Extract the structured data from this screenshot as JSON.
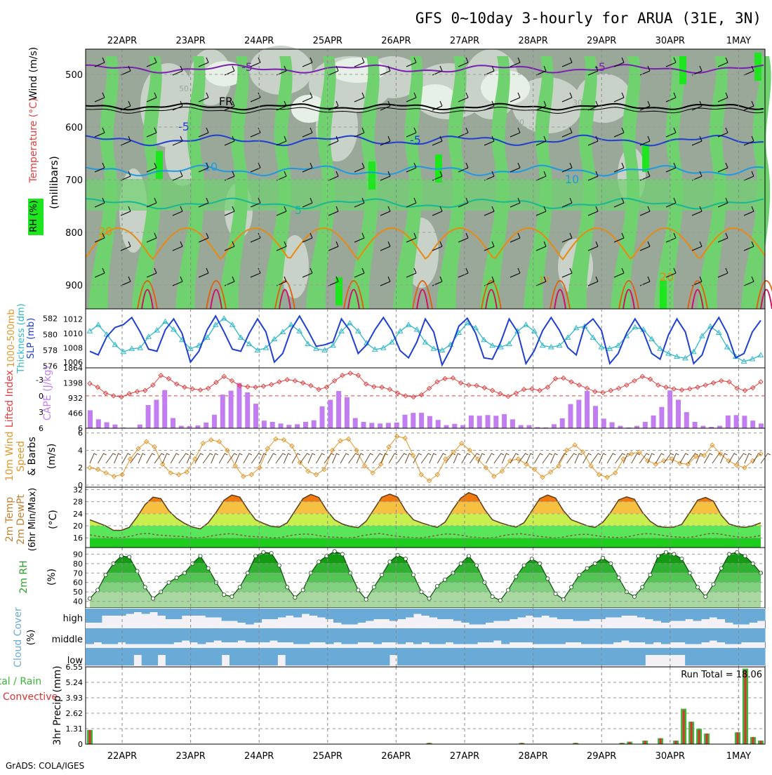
{
  "title": "GFS 0~10day 3-hourly for ARUA (31E, 3N)",
  "footer": "GrADS: COLA/IGES",
  "date_labels": [
    "22APR",
    "23APR",
    "24APR",
    "25APR",
    "26APR",
    "27APR",
    "28APR",
    "29APR",
    "30APR",
    "1MAY"
  ],
  "colors": {
    "rh_dark": "#9aa89a",
    "rh_mid": "#c8d2c8",
    "rh_light": "#e6f0e6",
    "green_mid": "#6fd26f",
    "green_bright": "#1ee61e",
    "slp": "#1f3fcf",
    "thickness": "#2fb8c8",
    "cape_bar": "#c27ef0",
    "lifted_index": "#e04040",
    "wind10m": "#e0962a",
    "temp_fill": "#f07a10",
    "rh2m_fill": "#32b432",
    "cloud": "#6aaad6",
    "precip_total": "#38b838",
    "precip_conv": "#e03030"
  },
  "panels": {
    "upper": {
      "axis_label": "(millibars)",
      "side_labels": [
        "Wind (m/s)",
        "Temperature (°C)",
        "RH (%)"
      ],
      "ticks": [
        "500",
        "600",
        "700",
        "800",
        "900"
      ],
      "contour_labels": [
        "-5",
        "-5",
        "FR",
        "-5",
        "-5",
        "10",
        "10",
        "5",
        "20",
        "20",
        "50",
        "50",
        "30",
        "30",
        "70",
        "10"
      ]
    },
    "slp": {
      "side_labels": [
        "1000-500mb",
        "Thickness (dm)",
        "SLP (mb)"
      ],
      "ticks_left": [
        "582",
        "580",
        "578",
        "576"
      ],
      "ticks_right": [
        "1012",
        "1010",
        "1008",
        "1006"
      ]
    },
    "cape": {
      "side_labels": [
        "Lifted Index",
        "CAPE (J/kg)"
      ],
      "ticks_left": [
        "-3",
        "0",
        "3",
        "6"
      ],
      "ticks_right": [
        "1864",
        "1398",
        "932",
        "466",
        "6"
      ]
    },
    "wind10m": {
      "side_labels": [
        "10m Wind",
        "Speed",
        "& Barbs"
      ],
      "unit": "(m/s)",
      "ticks": [
        "6",
        "4",
        "2",
        "0"
      ]
    },
    "temp2m": {
      "side_labels": [
        "2m Temp",
        "2m DewPt",
        "(6hr Min/Max)"
      ],
      "unit": "(°C)",
      "ticks": [
        "32",
        "28",
        "24",
        "20",
        "16"
      ]
    },
    "rh2m": {
      "side_labels": [
        "2m RH"
      ],
      "unit": "(%)",
      "ticks": [
        "90",
        "80",
        "70",
        "60",
        "50",
        "40"
      ]
    },
    "cloud": {
      "side_labels": [
        "Cloud Cover"
      ],
      "unit": "(%)",
      "levels": [
        "high",
        "middle",
        "low"
      ]
    },
    "precip": {
      "side_labels": [
        "Total / Rain",
        "Convective"
      ],
      "axis_label": "3hr Precip (mm)",
      "ticks": [
        "6.55",
        "5.24",
        "3.93",
        "2.62",
        "1.31",
        "0"
      ],
      "run_total": "Run Total = 18.06"
    }
  },
  "chart_data": {
    "type": "meteogram",
    "x": [
      "22APR",
      "23APR",
      "24APR",
      "25APR",
      "26APR",
      "27APR",
      "28APR",
      "29APR",
      "30APR",
      "1MAY"
    ],
    "slp_mb": [
      1007.5,
      1007.0,
      1009.5,
      1010.8,
      1011.2,
      1012.2,
      1010.2,
      1007.8,
      1007.5,
      1010.5,
      1012.0,
      1010.0,
      1006.0,
      1007.5,
      1010.5,
      1012.4,
      1010.2,
      1007.8,
      1007.5,
      1010.0,
      1012.0,
      1010.2,
      1006.0,
      1007.2,
      1010.5,
      1012.4,
      1010.4,
      1008.2,
      1008.4,
      1008.8,
      1012.0,
      1010.4,
      1007.2,
      1008.4,
      1010.5,
      1012.2,
      1010.4,
      1007.6,
      1006.6,
      1008.8,
      1012.0,
      1010.2,
      1005.6,
      1007.8,
      1011.0,
      1012.1,
      1010.0,
      1006.6,
      1006.4,
      1008.8,
      1012.0,
      1010.2,
      1005.8,
      1007.6,
      1010.4,
      1012.2,
      1010.4,
      1008.0,
      1007.0,
      1011.0,
      1012.0,
      1010.4,
      1005.8,
      1007.2,
      1010.0,
      1012.0,
      1010.2,
      1007.2,
      1006.4,
      1009.8,
      1012.0,
      1010.2,
      1005.8,
      1007.0,
      1010.4,
      1012.2,
      1010.0,
      1006.6,
      1007.2,
      1010.2,
      1011.8
    ],
    "thickness_dm": [
      580.4,
      581.2,
      580.0,
      578.7,
      577.8,
      578.2,
      578.3,
      579.7,
      580.5,
      581.6,
      580.6,
      579.3,
      578.2,
      578.6,
      579.6,
      581.2,
      582.0,
      581.2,
      579.6,
      578.8,
      578.0,
      578.3,
      579.4,
      580.3,
      581.2,
      580.4,
      578.8,
      578.2,
      578.0,
      578.6,
      580.4,
      581.4,
      580.4,
      578.9,
      578.1,
      578.3,
      579.0,
      580.4,
      581.2,
      580.6,
      579.0,
      578.2,
      578.0,
      578.7,
      580.2,
      581.4,
      580.8,
      579.3,
      578.6,
      578.4,
      578.8,
      580.4,
      581.2,
      580.4,
      578.6,
      578.4,
      578.6,
      579.6,
      580.8,
      581.0,
      579.6,
      578.4,
      578.2,
      578.6,
      579.8,
      580.9,
      580.6,
      579.4,
      578.2,
      577.6,
      577.2,
      577.0,
      577.8,
      579.8,
      581.0,
      580.2,
      578.4,
      577.2,
      576.6,
      576.9,
      577.4
    ],
    "cape_jkg": [
      560,
      280,
      190,
      120,
      30,
      20,
      120,
      720,
      880,
      1180,
      320,
      80,
      70,
      90,
      180,
      420,
      1040,
      1160,
      1400,
      1110,
      760,
      240,
      200,
      150,
      110,
      130,
      200,
      250,
      680,
      880,
      1150,
      960,
      320,
      200,
      170,
      150,
      170,
      180,
      420,
      480,
      480,
      380,
      260,
      100,
      140,
      100,
      400,
      390,
      410,
      390,
      440,
      280,
      100,
      100,
      40,
      30,
      130,
      310,
      750,
      880,
      1150,
      690,
      300,
      190,
      80,
      30,
      80,
      200,
      400,
      660,
      1170,
      880,
      500,
      200,
      80,
      50,
      80,
      400,
      410,
      390,
      240,
      150
    ],
    "lifted_index": [
      -2.3,
      -1.6,
      -0.5,
      0.0,
      0.2,
      -0.4,
      -0.8,
      -1.0,
      -2.0,
      -3.8,
      -3.2,
      -2.2,
      -1.6,
      -1.3,
      -1.1,
      -1.4,
      -2.5,
      -3.6,
      -2.8,
      -1.9,
      -1.7,
      -1.6,
      -1.8,
      -2.1,
      -2.6,
      -3.0,
      -2.8,
      -2.4,
      -1.9,
      -1.2,
      -1.6,
      -2.8,
      -3.8,
      -4.2,
      -3.8,
      -2.2,
      -1.7,
      -1.6,
      -1.2,
      -0.5,
      0.0,
      0.2,
      -0.2,
      -1.4,
      -2.6,
      -3.2,
      -3.3,
      -2.4,
      -2.0,
      -1.9,
      -1.5,
      -1.0,
      -0.4,
      0.1,
      -0.5,
      -1.2,
      -1.3,
      -1.0,
      -1.6,
      -3.2,
      -3.3,
      -2.6,
      -2.0,
      -1.4,
      -0.8,
      -0.6,
      -1.0,
      -1.4,
      -2.0,
      -2.8,
      -3.6,
      -3.1,
      -2.0,
      -1.6,
      -1.3,
      -1.1,
      -1.3,
      -1.6,
      -2.0,
      -2.4,
      -2.8,
      -2.6,
      -1.4,
      -1.0,
      -1.5,
      -2.6
    ],
    "wind10m_ms": [
      2.0,
      1.8,
      1.4,
      1.0,
      1.2,
      3.0,
      4.2,
      5.0,
      4.4,
      2.4,
      1.4,
      1.2,
      1.5,
      3.0,
      4.8,
      5.2,
      5.0,
      4.0,
      2.2,
      1.0,
      1.2,
      2.0,
      4.2,
      5.3,
      5.2,
      4.5,
      2.6,
      1.6,
      1.2,
      1.8,
      4.0,
      5.1,
      5.3,
      4.0,
      2.2,
      1.4,
      2.4,
      4.4,
      5.6,
      5.4,
      3.4,
      1.2,
      0.5,
      1.2,
      3.0,
      3.8,
      4.8,
      4.0,
      3.0,
      2.0,
      1.0,
      1.6,
      2.8,
      3.0,
      2.4,
      1.8,
      0.9,
      1.5,
      2.2,
      4.0,
      4.6,
      3.8,
      2.2,
      1.2,
      0.9,
      1.4,
      3.0,
      3.6,
      3.8,
      2.8,
      2.4,
      2.8,
      3.0,
      2.5,
      2.4,
      3.3,
      3.4,
      4.6,
      3.6,
      2.8,
      2.3,
      2.0,
      2.8,
      3.6
    ],
    "temp2m_c": [
      22,
      21,
      20,
      18.5,
      18.5,
      19.5,
      23,
      27,
      29.5,
      29,
      25,
      22.5,
      20.8,
      19.6,
      19,
      21,
      24.5,
      28.5,
      30.2,
      29.5,
      25.5,
      22,
      20.8,
      19.8,
      19.6,
      21,
      25,
      29,
      30.4,
      29.4,
      25.2,
      22,
      20.6,
      19.8,
      19.4,
      21.5,
      25.5,
      29.5,
      30.5,
      29.5,
      25,
      22,
      21,
      20.2,
      19.5,
      21.2,
      25.5,
      29.2,
      31,
      30,
      25.5,
      22,
      21,
      20.2,
      19.6,
      21,
      25,
      29,
      30.2,
      29.2,
      25,
      22,
      21,
      20,
      19.5,
      21.2,
      24.5,
      28.6,
      29.6,
      28.8,
      24.5,
      21.5,
      19.8,
      19.5,
      19.6,
      20.5,
      24.4,
      28.5,
      29.4,
      28.2,
      23.5,
      20.6,
      19.8,
      19.5,
      20,
      21
    ],
    "dewpt2m_c": [
      17,
      16.5,
      16.3,
      16.0,
      16.2,
      16.6,
      17.3,
      17.5,
      17.0,
      16.8,
      16.6,
      16.5,
      16.2,
      16.0,
      16.3,
      16.8,
      17.2,
      17.4,
      17.0,
      16.6,
      16.4,
      16.3,
      16.0,
      16.1,
      16.7,
      17.1,
      17.3,
      17.1,
      16.6,
      16.3,
      16.2,
      16.0,
      16.2,
      16.8,
      17.2,
      17.5,
      17.0,
      16.6,
      16.3,
      16.1,
      16.0,
      16.4,
      16.9,
      17.3,
      17.2,
      16.8,
      16.3,
      16.1,
      16.0,
      16.2,
      16.8,
      17.2,
      17.4,
      17.0,
      16.6,
      16.3,
      16.0,
      16.2,
      16.7,
      17.1,
      17.2,
      16.8,
      16.4,
      16.2,
      16.1,
      16.4,
      17.0,
      17.4,
      17.3,
      16.9,
      16.5,
      16.3,
      16.1,
      16.4,
      17.0,
      17.5,
      17.3,
      16.8,
      16.4,
      16.1,
      16.3,
      16.8
    ],
    "rh2m_pct": [
      43,
      52,
      68,
      80,
      88,
      87,
      72,
      55,
      43,
      50,
      60,
      65,
      70,
      80,
      88,
      75,
      60,
      47,
      45,
      55,
      70,
      88,
      92,
      91,
      78,
      55,
      44,
      52,
      70,
      82,
      88,
      93,
      90,
      70,
      52,
      42,
      55,
      68,
      82,
      89,
      85,
      68,
      50,
      43,
      56,
      63,
      70,
      80,
      88,
      78,
      60,
      45,
      41,
      52,
      66,
      78,
      85,
      80,
      64,
      48,
      42,
      55,
      68,
      75,
      80,
      86,
      80,
      65,
      50,
      45,
      55,
      68,
      88,
      92,
      90,
      85,
      70,
      55,
      45,
      58,
      75,
      90,
      92,
      88,
      80,
      70
    ],
    "cloud_high_pct": [
      80,
      80,
      40,
      40,
      40,
      30,
      20,
      30,
      20,
      40,
      60,
      60,
      40,
      40,
      40,
      50,
      50,
      70,
      70,
      80,
      90,
      80,
      60,
      60,
      50,
      40,
      50,
      30,
      40,
      50,
      60,
      80,
      90,
      90,
      80,
      70,
      60,
      60,
      70,
      60,
      50,
      30,
      40,
      50,
      60,
      60,
      70,
      80,
      90,
      90,
      80,
      70,
      70,
      60,
      50,
      40,
      50,
      40,
      50,
      60,
      60,
      70,
      70,
      60,
      60,
      50,
      50,
      40,
      40,
      50,
      60,
      70,
      80,
      70,
      70,
      60,
      70,
      60,
      50,
      60,
      80,
      90,
      90,
      80,
      70
    ],
    "cloud_mid_pct": [
      90,
      80,
      90,
      90,
      80,
      90,
      90,
      90,
      90,
      90,
      90,
      80,
      70,
      80,
      90,
      80,
      70,
      80,
      80,
      70,
      80,
      80,
      80,
      70,
      80,
      80,
      90,
      90,
      80,
      80,
      90,
      80,
      90,
      90,
      80,
      80,
      90,
      80,
      80,
      90,
      80,
      90,
      80,
      90,
      90,
      80,
      90,
      90,
      90,
      80,
      80,
      70,
      90,
      80,
      80,
      80,
      90,
      90,
      90,
      90,
      80,
      80,
      90,
      90,
      90,
      90,
      80,
      70,
      80,
      80,
      90,
      80,
      90,
      80,
      80,
      90,
      90,
      80,
      70,
      80,
      90,
      90,
      80,
      80,
      80
    ],
    "cloud_low_pct": [
      100,
      100,
      100,
      100,
      100,
      100,
      40,
      100,
      100,
      40,
      100,
      100,
      100,
      100,
      100,
      100,
      100,
      40,
      100,
      100,
      100,
      100,
      100,
      100,
      40,
      100,
      100,
      100,
      100,
      100,
      100,
      100,
      100,
      100,
      100,
      100,
      100,
      100,
      40,
      100,
      100,
      100,
      100,
      100,
      100,
      100,
      100,
      100,
      100,
      100,
      100,
      100,
      100,
      100,
      100,
      100,
      100,
      100,
      100,
      100,
      100,
      100,
      100,
      100,
      100,
      100,
      100,
      100,
      100,
      100,
      40,
      40,
      40,
      40,
      40,
      100,
      100,
      100,
      100,
      100,
      100,
      100,
      100,
      100,
      100
    ],
    "precip_total_mm": [
      1.2,
      0.0,
      0.0,
      0.0,
      0.0,
      0.0,
      0.0,
      0.0,
      0.0,
      0.0,
      0.0,
      0.0,
      0.0,
      0.0,
      0.0,
      0.0,
      0.0,
      0.0,
      0.0,
      0.0,
      0.0,
      0.0,
      0.0,
      0.0,
      0.0,
      0.0,
      0.0,
      0.0,
      0.0,
      0.0,
      0.0,
      0.0,
      0.0,
      0.0,
      0.0,
      0.0,
      0.0,
      0.0,
      0.0,
      0.0,
      0.0,
      0.0,
      0.0,
      0.0,
      0.1,
      0.0,
      0.0,
      0.0,
      0.0,
      0.0,
      0.0,
      0.0,
      0.0,
      0.0,
      0.0,
      0.0,
      0.1,
      0.0,
      0.0,
      0.0,
      0.0,
      0.0,
      0.0,
      0.1,
      0.0,
      0.0,
      0.0,
      0.0,
      0.0,
      0.1,
      0.2,
      0.0,
      0.3,
      0.0,
      0.5,
      0.0,
      0.3,
      3.0,
      1.9,
      1.3,
      0.9,
      0.0,
      0.0,
      0.0,
      1.0,
      6.4,
      0.6,
      0.3
    ],
    "precip_conv_mm": [
      1.2,
      0.0,
      0.0,
      0.0,
      0.0,
      0.0,
      0.0,
      0.0,
      0.0,
      0.0,
      0.0,
      0.0,
      0.0,
      0.0,
      0.0,
      0.0,
      0.0,
      0.0,
      0.0,
      0.0,
      0.0,
      0.0,
      0.0,
      0.0,
      0.0,
      0.0,
      0.0,
      0.0,
      0.0,
      0.0,
      0.0,
      0.0,
      0.0,
      0.0,
      0.0,
      0.0,
      0.0,
      0.0,
      0.0,
      0.0,
      0.0,
      0.0,
      0.0,
      0.0,
      0.1,
      0.0,
      0.0,
      0.0,
      0.0,
      0.0,
      0.0,
      0.0,
      0.0,
      0.0,
      0.0,
      0.0,
      0.1,
      0.0,
      0.0,
      0.0,
      0.0,
      0.0,
      0.0,
      0.1,
      0.0,
      0.0,
      0.0,
      0.0,
      0.0,
      0.1,
      0.2,
      0.0,
      0.3,
      0.0,
      0.5,
      0.0,
      0.3,
      2.9,
      1.9,
      1.2,
      0.9,
      0.0,
      0.0,
      0.0,
      1.0,
      6.3,
      0.6,
      0.3
    ]
  }
}
